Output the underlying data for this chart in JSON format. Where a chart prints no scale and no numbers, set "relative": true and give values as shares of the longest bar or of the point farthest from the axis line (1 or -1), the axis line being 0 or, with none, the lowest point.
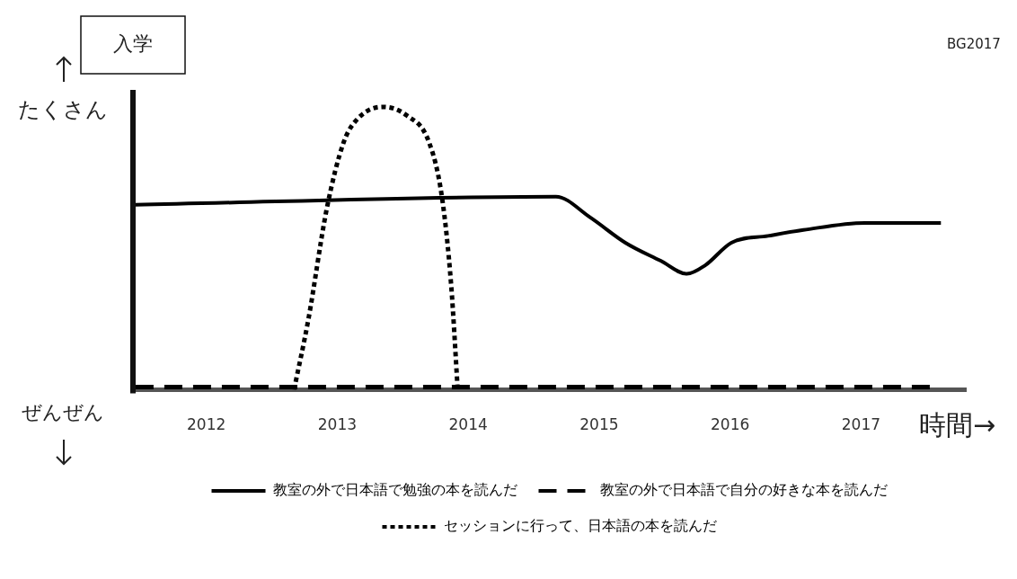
{
  "chart_data": {
    "type": "line",
    "relative": true,
    "xlabel": "時間→",
    "xlim": [
      2011.44,
      2017.8
    ],
    "xticks": [
      2012,
      2013,
      2014,
      2015,
      2016,
      2017
    ],
    "grid": false,
    "legend": "bottom",
    "marker": "none",
    "annotations": [
      "入学",
      "BG2017",
      "たくさん",
      "ぜんぜん"
    ],
    "series": [
      {
        "name": "教室の外で日本語で勉強の本を読んだ",
        "color": "#000000",
        "line_style": "solid",
        "x": [
          2011.46,
          2014.67,
          2014.93,
          2015.2,
          2015.47,
          2015.67,
          2015.81,
          2016.01,
          2016.29,
          2016.56,
          2017.03,
          2017.61
        ],
        "values": [
          0.654,
          0.683,
          0.61,
          0.52,
          0.456,
          0.41,
          0.44,
          0.52,
          0.544,
          0.565,
          0.59,
          0.59
        ]
      },
      {
        "name": "教室の外で日本語で自分の好きな本を読んだ",
        "color": "#000000",
        "line_style": "dashed",
        "x": [
          2011.46,
          2017.55
        ],
        "values": [
          0.01,
          0.01
        ]
      },
      {
        "name": "セッションに行って、日本語の本を読んだ",
        "color": "#000000",
        "line_style": "dotted",
        "x": [
          2012.67,
          2012.78,
          2012.92,
          2013.05,
          2013.16,
          2013.35,
          2013.53,
          2013.7,
          2013.8,
          2013.87,
          2013.92
        ],
        "values": [
          0,
          0.25,
          0.64,
          0.876,
          0.96,
          1,
          0.97,
          0.876,
          0.68,
          0.37,
          0
        ]
      }
    ]
  }
}
